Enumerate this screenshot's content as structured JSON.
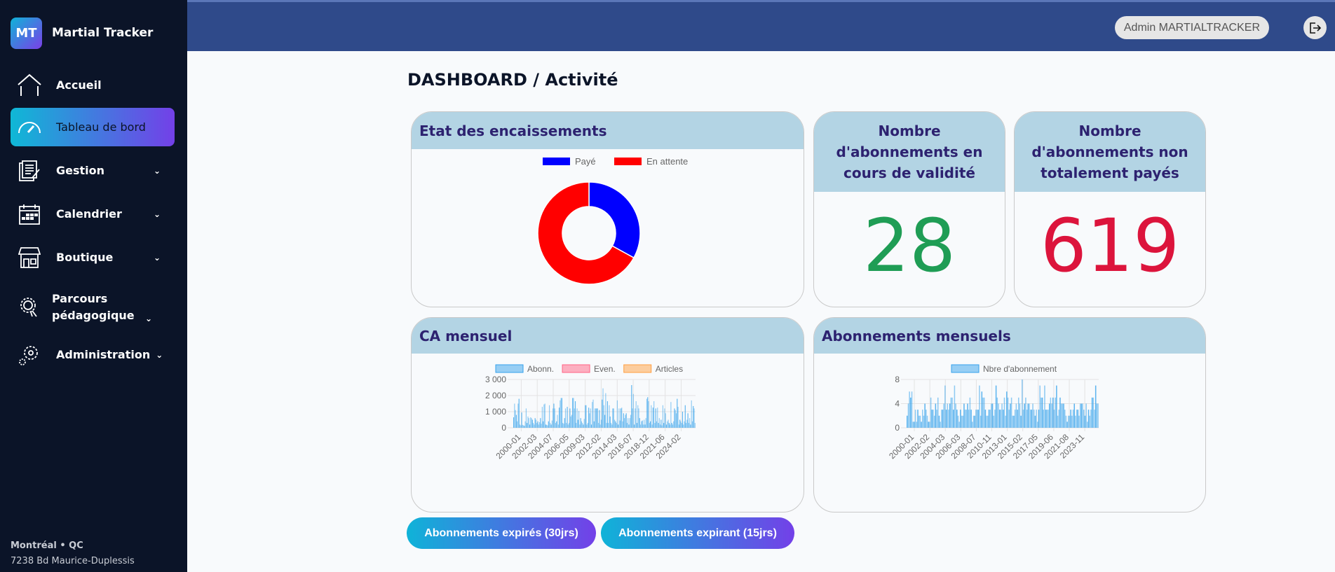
{
  "app": {
    "logo": "MT",
    "name": "Martial Tracker"
  },
  "sidebar": {
    "items": [
      {
        "label": "Accueil",
        "icon": "home-icon"
      },
      {
        "label": "Tableau de bord",
        "icon": "gauge-icon",
        "active": true
      },
      {
        "label": "Gestion",
        "icon": "document-edit-icon"
      },
      {
        "label": "Calendrier",
        "icon": "calendar-icon"
      },
      {
        "label": "Boutique",
        "icon": "store-icon"
      },
      {
        "label": "Parcours pédagogique",
        "icon": "award-icon"
      },
      {
        "label": "Administration",
        "icon": "gears-icon"
      }
    ],
    "footer": {
      "city": "Montréal • QC",
      "address": "7238 Bd Maurice-Duplessis"
    }
  },
  "header": {
    "user": "Admin MARTIALTRACKER",
    "logout_icon": "logout-icon"
  },
  "page": {
    "title": "DASHBOARD / Activité"
  },
  "cards": {
    "encaissements": {
      "title": "Etat des encaissements"
    },
    "valid": {
      "title": "Nombre d'abonnements en cours de validité",
      "value": "28",
      "color": "#1f9d55"
    },
    "unpaid": {
      "title": "Nombre d'abonnements non totalement payés",
      "value": "619",
      "color": "#dc143c"
    },
    "ca": {
      "title": "CA mensuel"
    },
    "abos": {
      "title": "Abonnements mensuels"
    }
  },
  "buttons": {
    "expired": "Abonnements expirés (30jrs)",
    "expiring": "Abonnements expirant (15jrs)"
  },
  "chart_data": [
    {
      "type": "pie",
      "donut": true,
      "legend": "top",
      "labels": [
        "Payé",
        "En attente"
      ],
      "values": [
        33,
        67
      ],
      "colors": [
        "#0000ff",
        "#ff0000"
      ]
    },
    {
      "type": "bar",
      "legend": "top",
      "grid": true,
      "ylim": [
        0,
        3000
      ],
      "yticks": [
        "0",
        "1 000",
        "2 000",
        "3 000"
      ],
      "x_tick_labels": [
        "2000-01",
        "2002-03",
        "2004-07",
        "2006-05",
        "2009-03",
        "2012-02",
        "2014-03",
        "2016-07",
        "2018-12",
        "2021-06",
        "2024-02"
      ],
      "series": [
        {
          "name": "Abonn.",
          "color": "#36a2eb",
          "values": [
            650,
            1500,
            1100,
            800,
            400,
            1500,
            1800,
            200,
            150,
            950,
            180,
            150,
            120,
            400,
            1200,
            300,
            700,
            600,
            200,
            650,
            600,
            500,
            300,
            200,
            600,
            500,
            300,
            400,
            200,
            350,
            600,
            250,
            1300,
            400,
            1450,
            1500,
            200,
            180,
            150,
            400,
            1400,
            300,
            200,
            450,
            1200,
            1500,
            1200,
            300,
            400,
            800,
            200,
            1250,
            1700,
            1850,
            1850,
            300,
            250,
            600,
            1200,
            300,
            1300,
            200,
            300,
            1200,
            700,
            800,
            1850,
            1850,
            1200,
            1650,
            300,
            1200,
            500,
            1050,
            200,
            600,
            400,
            300,
            200,
            550,
            1400,
            1400,
            200,
            300,
            1250,
            900,
            1200,
            200,
            1600,
            1750,
            400,
            1200,
            1200,
            1200,
            1200,
            300,
            1100,
            200,
            500,
            1750,
            2450,
            1400,
            800,
            2150,
            300,
            1650,
            300,
            1400,
            700,
            300,
            200,
            1200,
            1200,
            500,
            400,
            300,
            1700,
            200,
            1200,
            450,
            1200,
            1250,
            400,
            900,
            600,
            800,
            900,
            300,
            600,
            200,
            600,
            800,
            2650,
            1200,
            2100,
            200,
            1200,
            1650,
            300,
            1400,
            1200,
            600,
            200,
            400,
            450,
            200,
            500,
            200,
            600,
            1800,
            1900,
            1650,
            300,
            400,
            1400,
            200,
            1250,
            1650,
            300,
            1200,
            400,
            1250,
            300,
            600,
            200,
            500,
            150,
            1400,
            300,
            1200,
            900,
            200,
            400,
            500,
            300,
            200,
            1600,
            300,
            200,
            400,
            1200,
            1100,
            900,
            1800,
            1300,
            200,
            500,
            400,
            300,
            1000,
            200,
            400,
            1400,
            300,
            500,
            900,
            300,
            600,
            200,
            1700,
            400,
            1350,
            1200,
            300
          ]
        },
        {
          "name": "Even.",
          "color": "#ff6384",
          "values": []
        },
        {
          "name": "Articles",
          "color": "#ff9f40",
          "values": []
        }
      ]
    },
    {
      "type": "bar",
      "legend": "top",
      "grid": true,
      "ylim": [
        0,
        8
      ],
      "yticks": [
        "0",
        "4",
        "8"
      ],
      "x_tick_labels": [
        "2000-01",
        "2002-02",
        "2004-03",
        "2006-03",
        "2008-07",
        "2010-11",
        "2013-01",
        "2015-02",
        "2017-05",
        "2019-06",
        "2021-08",
        "2023-11"
      ],
      "series": [
        {
          "name": "Nbre d'abonnement",
          "color": "#36a2eb",
          "values": [
            2,
            4,
            6,
            5,
            6,
            1,
            1,
            3,
            1,
            3,
            2,
            2,
            1,
            3,
            2,
            4,
            3,
            2,
            1,
            1,
            5,
            3,
            3,
            2,
            4,
            3,
            5,
            2,
            1,
            3,
            3,
            4,
            7,
            3,
            4,
            3,
            4,
            5,
            5,
            3,
            7,
            4,
            3,
            2,
            1,
            3,
            2,
            2,
            4,
            3,
            3,
            4,
            3,
            5,
            3,
            1,
            2,
            2,
            3,
            3,
            3,
            7,
            2,
            6,
            5,
            5,
            3,
            2,
            2,
            3,
            3,
            4,
            4,
            2,
            3,
            7,
            5,
            4,
            3,
            3,
            4,
            3,
            5,
            2,
            6,
            5,
            3,
            4,
            5,
            2,
            2,
            3,
            4,
            3,
            5,
            4,
            2,
            8,
            3,
            4,
            5,
            3,
            4,
            4,
            3,
            3,
            4,
            3,
            2,
            3,
            1,
            3,
            7,
            5,
            5,
            3,
            7,
            3,
            3,
            3,
            4,
            5,
            4,
            5,
            3,
            5,
            7,
            2,
            3,
            5,
            4,
            4,
            4,
            3,
            2,
            1,
            2,
            2,
            3,
            2,
            3,
            4,
            2,
            3,
            3,
            2,
            4,
            4,
            4,
            3,
            2,
            4,
            1,
            3,
            2,
            3,
            5,
            5,
            3,
            7,
            4,
            4
          ]
        }
      ]
    }
  ]
}
